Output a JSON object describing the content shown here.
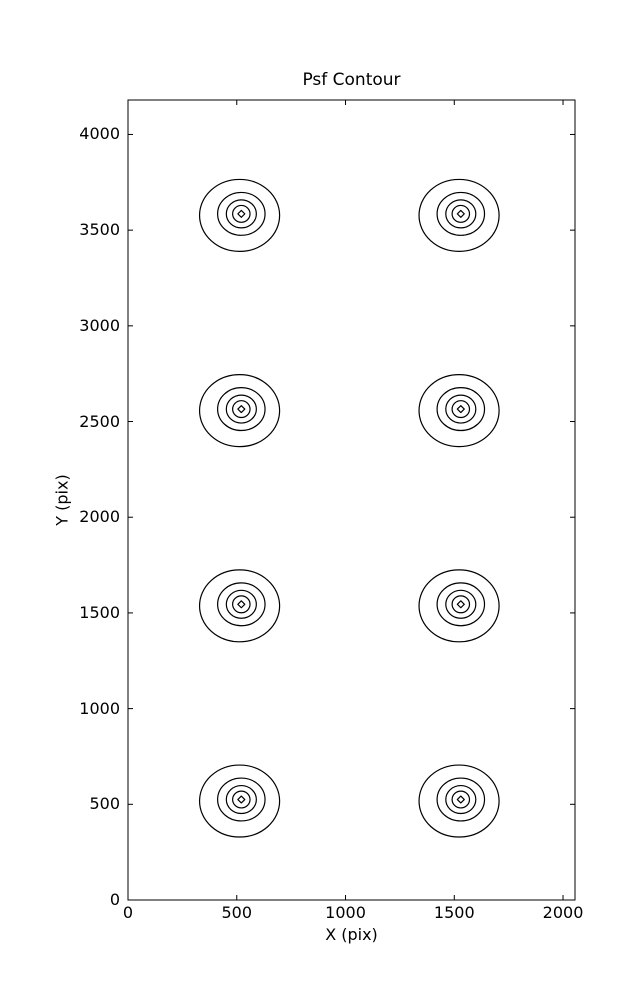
{
  "figure": {
    "background_color": "#ffffff",
    "line_color": "#000000"
  },
  "chart_data": {
    "type": "contour",
    "title": "Psf Contour",
    "xlabel": "X (pix)",
    "ylabel": "Y (pix)",
    "xlim": [
      0,
      2055
    ],
    "ylim": [
      0,
      4180
    ],
    "xticks": [
      0,
      500,
      1000,
      1500,
      2000
    ],
    "yticks": [
      0,
      500,
      1000,
      1500,
      2000,
      2500,
      3000,
      3500,
      4000
    ],
    "grid": false,
    "legend": "none",
    "description": "Eight PSF contour groups arranged in 2 columns x 4 rows, each drawn as 5 nested concentric contour levels (outer four are ellipses, innermost is a small diamond).",
    "psf_centers": [
      {
        "x": 521,
        "y": 3585
      },
      {
        "x": 1530,
        "y": 3585
      },
      {
        "x": 521,
        "y": 2565
      },
      {
        "x": 1530,
        "y": 2565
      },
      {
        "x": 521,
        "y": 1545
      },
      {
        "x": 1530,
        "y": 1545
      },
      {
        "x": 521,
        "y": 525
      },
      {
        "x": 1530,
        "y": 525
      }
    ],
    "contour_levels_radii": [
      {
        "shape": "ellipse",
        "rx": 184,
        "ry": 188,
        "dx": -8,
        "dy": -8
      },
      {
        "shape": "ellipse",
        "rx": 109,
        "ry": 112,
        "dx": 0,
        "dy": 0
      },
      {
        "shape": "ellipse",
        "rx": 69,
        "ry": 73,
        "dx": 0,
        "dy": 0
      },
      {
        "shape": "ellipse",
        "rx": 40,
        "ry": 44,
        "dx": 0,
        "dy": 0
      },
      {
        "shape": "diamond",
        "rx": 16,
        "ry": 18,
        "dx": 0,
        "dy": 0
      }
    ]
  }
}
